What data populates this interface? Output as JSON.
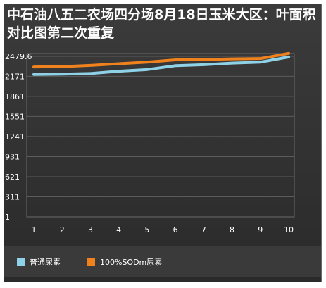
{
  "chart_data": {
    "type": "line",
    "title": "中石油八五二农场四分场8月18日玉米大区：叶面积对比图第二次重复",
    "xlabel": "",
    "ylabel": "",
    "x": [
      "1",
      "2",
      "3",
      "4",
      "5",
      "6",
      "7",
      "8",
      "9",
      "10"
    ],
    "yticks": [
      "1",
      "311",
      "621",
      "931",
      "1241",
      "1551",
      "1861",
      "2171",
      "2479.6"
    ],
    "ylim": [
      1,
      2479.6
    ],
    "grid": true,
    "legend_position": "bottom",
    "series": [
      {
        "name": "普通尿素",
        "color": "#8fd2e8",
        "values": [
          2200,
          2205,
          2215,
          2250,
          2275,
          2335,
          2350,
          2375,
          2390,
          2470
        ]
      },
      {
        "name": "100%SODm尿素",
        "color": "#f0821e",
        "values": [
          2315,
          2320,
          2340,
          2365,
          2390,
          2425,
          2430,
          2440,
          2445,
          2525
        ]
      }
    ]
  }
}
